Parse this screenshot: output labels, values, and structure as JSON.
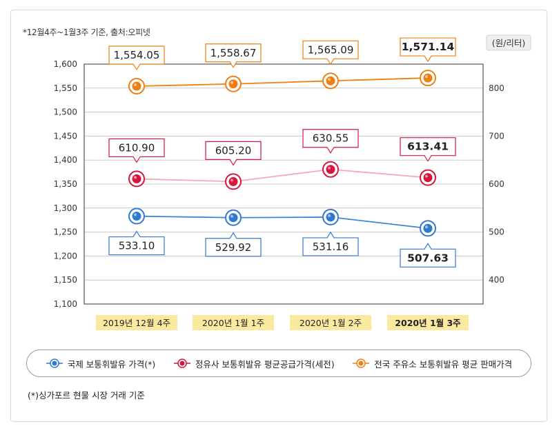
{
  "source_note": "*12월4주~1월3주 기준, 출처:오피넷",
  "footnote": "(*)싱가포르 현물 시장 거래 기준",
  "chart_data": {
    "type": "line",
    "categories": [
      "2019년 12월 4주",
      "2020년 1월 1주",
      "2020년 1월 2주",
      "2020년 1월 3주"
    ],
    "highlight_category_index": 3,
    "left_axis": {
      "min": 1100,
      "max": 1600,
      "step": 50,
      "ticks": [
        "1,100",
        "1,150",
        "1,200",
        "1,250",
        "1,300",
        "1,350",
        "1,400",
        "1,450",
        "1,500",
        "1,550",
        "1,600"
      ]
    },
    "right_axis": {
      "label": "(원/리터)",
      "min": 350,
      "max": 850,
      "ticks": [
        "400",
        "500",
        "600",
        "700",
        "800"
      ]
    },
    "series": [
      {
        "name": "국제 보통휘발유 가격(*)",
        "axis": "right",
        "color": "#2f7ad0",
        "line_color": "#3b86d6",
        "values": [
          533.1,
          529.92,
          531.16,
          507.63
        ],
        "labels": [
          "533.10",
          "529.92",
          "531.16",
          "507.63"
        ],
        "label_position": "below"
      },
      {
        "name": "정유사 보통휘발유 평균공급가격(세전)",
        "axis": "right",
        "color": "#d6163c",
        "line_color": "#f4a9b6",
        "values": [
          610.9,
          605.2,
          630.55,
          613.41
        ],
        "labels": [
          "610.90",
          "605.20",
          "630.55",
          "613.41"
        ],
        "label_position": "above"
      },
      {
        "name": "전국 주유소 보통휘발유 평균 판매가격",
        "axis": "left",
        "color": "#ee7f12",
        "line_color": "#ee7f12",
        "values": [
          1554.05,
          1558.67,
          1565.09,
          1571.14
        ],
        "labels": [
          "1,554.05",
          "1,558.67",
          "1,565.09",
          "1,571.14"
        ],
        "label_position": "above"
      }
    ]
  }
}
